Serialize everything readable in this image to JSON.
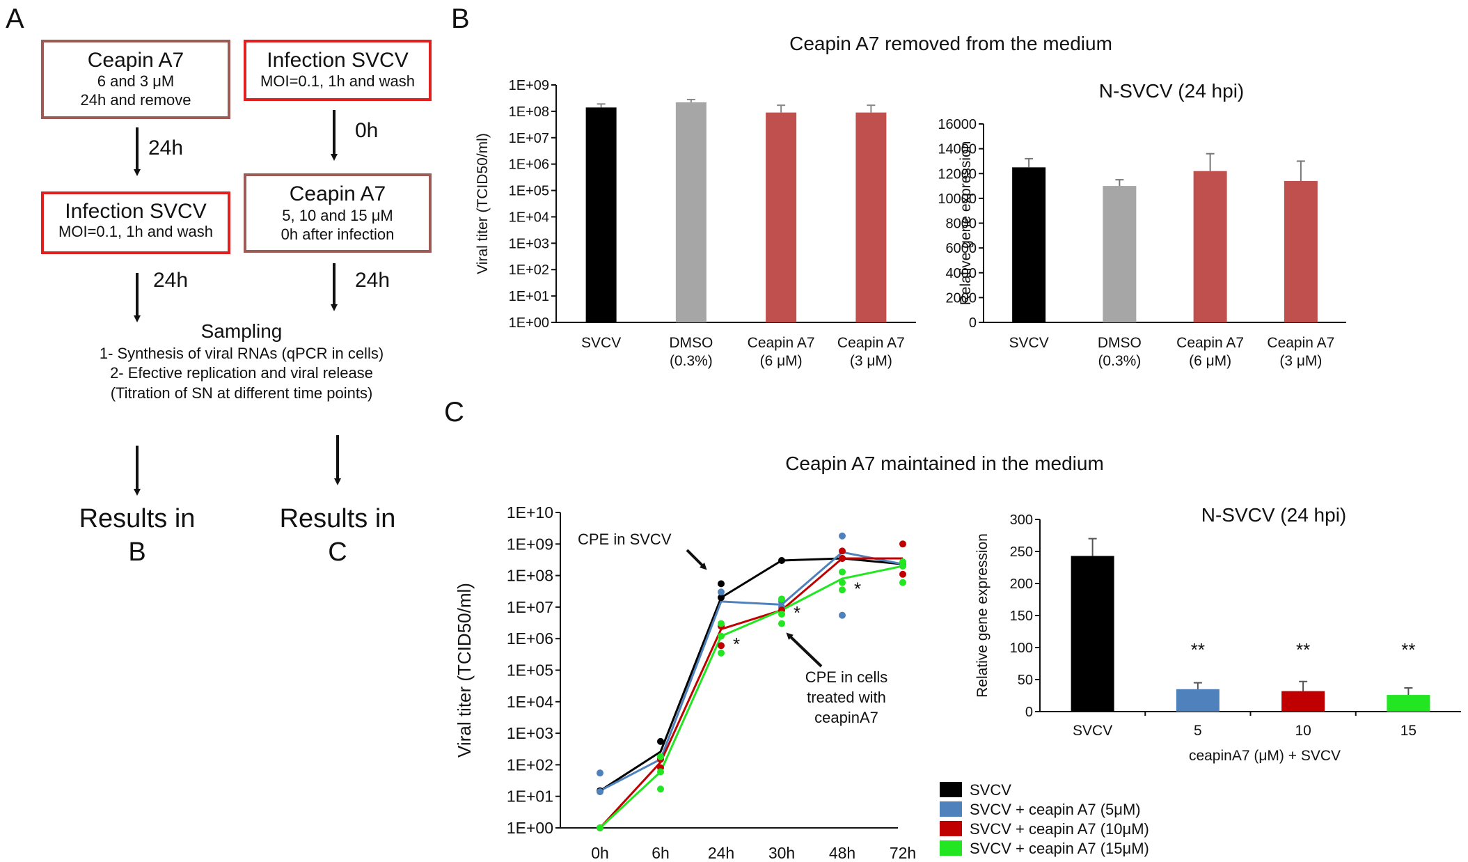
{
  "panel_labels": {
    "a": "A",
    "b": "B",
    "c": "C"
  },
  "diagram": {
    "boxes": [
      {
        "title": "Ceapin A7",
        "line1": "6 and 3 μM",
        "line2": "24h and remove",
        "border": "#9c5b54"
      },
      {
        "title": "Infection SVCV",
        "line1": "MOI=0.1, 1h and wash",
        "border": "#e0201e"
      },
      {
        "title": "Infection SVCV",
        "line1": "MOI=0.1, 1h and wash",
        "border": "#e0201e"
      },
      {
        "title": "Ceapin A7",
        "line1": "5, 10 and 15 μM",
        "line2": "0h after infection",
        "border": "#9c5b54"
      }
    ],
    "arrow_labels": [
      "24h",
      "0h",
      "24h",
      "24h"
    ],
    "sampling": {
      "title": "Sampling",
      "lines": [
        "1- Synthesis of viral RNAs (qPCR in cells)",
        "2- Efective replication and viral release",
        "(Titration of SN at different time points)"
      ]
    },
    "results": [
      {
        "line1": "Results in",
        "line2": "B"
      },
      {
        "line1": "Results in",
        "line2": "C"
      }
    ]
  },
  "headings": {
    "b": "Ceapin A7 removed from the medium",
    "c": "Ceapin A7 maintained in the medium"
  },
  "chart_data": [
    {
      "id": "B-left",
      "type": "bar",
      "title": "",
      "ylabel": "Viral titer (TCID50/ml)",
      "yscale": "log",
      "ylim": [
        1,
        1000000000
      ],
      "yticks": [
        "1E+00",
        "1E+01",
        "1E+02",
        "1E+03",
        "1E+04",
        "1E+05",
        "1E+06",
        "1E+07",
        "1E+08",
        "1E+09"
      ],
      "categories": [
        [
          "SVCV"
        ],
        [
          "DMSO",
          "(0.3%)"
        ],
        [
          "Ceapin A7",
          "(6 μM)"
        ],
        [
          "Ceapin A7",
          "(3 μM)"
        ]
      ],
      "values": [
        140000000,
        220000000,
        90000000,
        90000000
      ],
      "error_upper": [
        190000000,
        280000000,
        170000000,
        170000000
      ],
      "colors": [
        "#000000",
        "#a6a6a6",
        "#c0504d",
        "#c0504d"
      ]
    },
    {
      "id": "B-right",
      "type": "bar",
      "title": "N-SVCV (24 hpi)",
      "ylabel": "Relative gene expression",
      "ylim": [
        0,
        16000
      ],
      "yticks": [
        "0",
        "2000",
        "4000",
        "6000",
        "8000",
        "10000",
        "12000",
        "14000",
        "16000"
      ],
      "categories": [
        [
          "SVCV"
        ],
        [
          "DMSO",
          "(0.3%)"
        ],
        [
          "Ceapin A7",
          "(6 μM)"
        ],
        [
          "Ceapin A7",
          "(3 μM)"
        ]
      ],
      "values": [
        12500,
        11000,
        12200,
        11400
      ],
      "errors": [
        700,
        500,
        1400,
        1600
      ],
      "colors": [
        "#000000",
        "#a6a6a6",
        "#c0504d",
        "#c0504d"
      ]
    },
    {
      "id": "C-left",
      "type": "line",
      "title": "",
      "ylabel": "Viral titer (TCID50/ml)",
      "yscale": "log",
      "ylim": [
        1,
        10000000000
      ],
      "yticks": [
        "1E+00",
        "1E+01",
        "1E+02",
        "1E+03",
        "1E+04",
        "1E+05",
        "1E+06",
        "1E+07",
        "1E+08",
        "1E+09",
        "1E+10"
      ],
      "x": [
        "0h",
        "6h",
        "24h",
        "30h",
        "48h",
        "72h"
      ],
      "series": [
        {
          "name": "SVCV",
          "color": "#000000",
          "mean": [
            15,
            260,
            20000000,
            300000000,
            350000000,
            230000000
          ],
          "points": [
            [
              0,
              15
            ],
            [
              1,
              550
            ],
            [
              2,
              55000000
            ],
            [
              2,
              20000000
            ],
            [
              3,
              300000000
            ],
            [
              4,
              350000000
            ],
            [
              5,
              230000000
            ]
          ]
        },
        {
          "name": "SVCV + ceapin A7 (5μM)",
          "color": "#4f81bd",
          "mean": [
            15,
            150,
            15000000,
            12000000,
            550000000,
            230000000
          ],
          "points": [
            [
              0,
              55
            ],
            [
              0,
              14
            ],
            [
              1,
              160
            ],
            [
              2,
              30000000
            ],
            [
              2,
              2500000
            ],
            [
              3,
              15000000
            ],
            [
              3,
              10000000
            ],
            [
              4,
              1800000000
            ],
            [
              4,
              5500000
            ],
            [
              5,
              230000000
            ]
          ]
        },
        {
          "name": "SVCV + ceapin A7 (10μM)",
          "color": "#c00000",
          "mean": [
            1,
            120,
            2000000,
            8000000,
            350000000,
            350000000
          ],
          "points": [
            [
              0,
              1
            ],
            [
              1,
              150
            ],
            [
              1,
              80
            ],
            [
              2,
              2500000
            ],
            [
              2,
              600000
            ],
            [
              3,
              8000000
            ],
            [
              4,
              600000000
            ],
            [
              4,
              350000000
            ],
            [
              5,
              1000000000
            ],
            [
              5,
              110000000
            ]
          ]
        },
        {
          "name": "SVCV + ceapin A7 (15μM)",
          "color": "#22e622",
          "mean": [
            1,
            60,
            1200000,
            8000000,
            80000000,
            200000000
          ],
          "points": [
            [
              0,
              1
            ],
            [
              1,
              180
            ],
            [
              1,
              60
            ],
            [
              1,
              17
            ],
            [
              2,
              3000000
            ],
            [
              2,
              1200000
            ],
            [
              2,
              350000
            ],
            [
              3,
              18000000
            ],
            [
              3,
              6000000
            ],
            [
              3,
              3000000
            ],
            [
              4,
              130000000
            ],
            [
              4,
              60000000
            ],
            [
              4,
              35000000
            ],
            [
              5,
              270000000
            ],
            [
              5,
              200000000
            ],
            [
              5,
              60000000
            ]
          ]
        }
      ],
      "stars": [
        {
          "x": 2,
          "y": 700000,
          "label": "*"
        },
        {
          "x": 3,
          "y": 7000000,
          "label": "*"
        },
        {
          "x": 4,
          "y": 40000000,
          "label": "*"
        }
      ],
      "annotations": [
        {
          "text": "CPE in SVCV",
          "target_x": 2,
          "target_y": 60000000
        },
        {
          "lines": [
            "CPE in cells",
            "treated with",
            "ceapinA7"
          ],
          "target_x": 3,
          "target_y": 8000000
        }
      ],
      "legend": {
        "position": "bottom-right"
      }
    },
    {
      "id": "C-right",
      "type": "bar",
      "title": "N-SVCV (24 hpi)",
      "ylabel": "Relative gene expression",
      "ylim": [
        0,
        300
      ],
      "yticks": [
        "0",
        "50",
        "100",
        "150",
        "200",
        "250",
        "300"
      ],
      "categories": [
        "SVCV",
        "5",
        "10",
        "15"
      ],
      "values": [
        243,
        35,
        32,
        26
      ],
      "errors": [
        27,
        10,
        15,
        11
      ],
      "colors": [
        "#000000",
        "#4f81bd",
        "#c00000",
        "#22e622"
      ],
      "significance": [
        "",
        "**",
        "**",
        "**"
      ],
      "xlabel": "ceapinA7 (μM) + SVCV"
    }
  ]
}
